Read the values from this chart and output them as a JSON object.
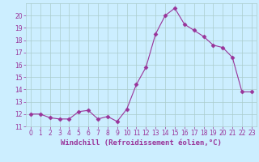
{
  "x": [
    0,
    1,
    2,
    3,
    4,
    5,
    6,
    7,
    8,
    9,
    10,
    11,
    12,
    13,
    14,
    15,
    16,
    17,
    18,
    19,
    20,
    21,
    22,
    23
  ],
  "y": [
    12.0,
    12.0,
    11.7,
    11.6,
    11.6,
    12.2,
    12.3,
    11.6,
    11.8,
    11.4,
    12.4,
    14.4,
    15.8,
    18.5,
    20.0,
    20.6,
    19.3,
    18.8,
    18.3,
    17.6,
    17.4,
    16.6,
    13.8,
    13.8
  ],
  "line_color": "#993399",
  "marker": "D",
  "marker_size": 2.5,
  "bg_color": "#cceeff",
  "grid_color": "#aacccc",
  "xlabel": "Windchill (Refroidissement éolien,°C)",
  "xlabel_color": "#993399",
  "xlim": [
    -0.5,
    23.5
  ],
  "ylim": [
    11.0,
    21.0
  ],
  "yticks": [
    11,
    12,
    13,
    14,
    15,
    16,
    17,
    18,
    19,
    20
  ],
  "xticks": [
    0,
    1,
    2,
    3,
    4,
    5,
    6,
    7,
    8,
    9,
    10,
    11,
    12,
    13,
    14,
    15,
    16,
    17,
    18,
    19,
    20,
    21,
    22,
    23
  ],
  "tick_color": "#993399",
  "tick_fontsize": 5.5,
  "xlabel_fontsize": 6.5
}
